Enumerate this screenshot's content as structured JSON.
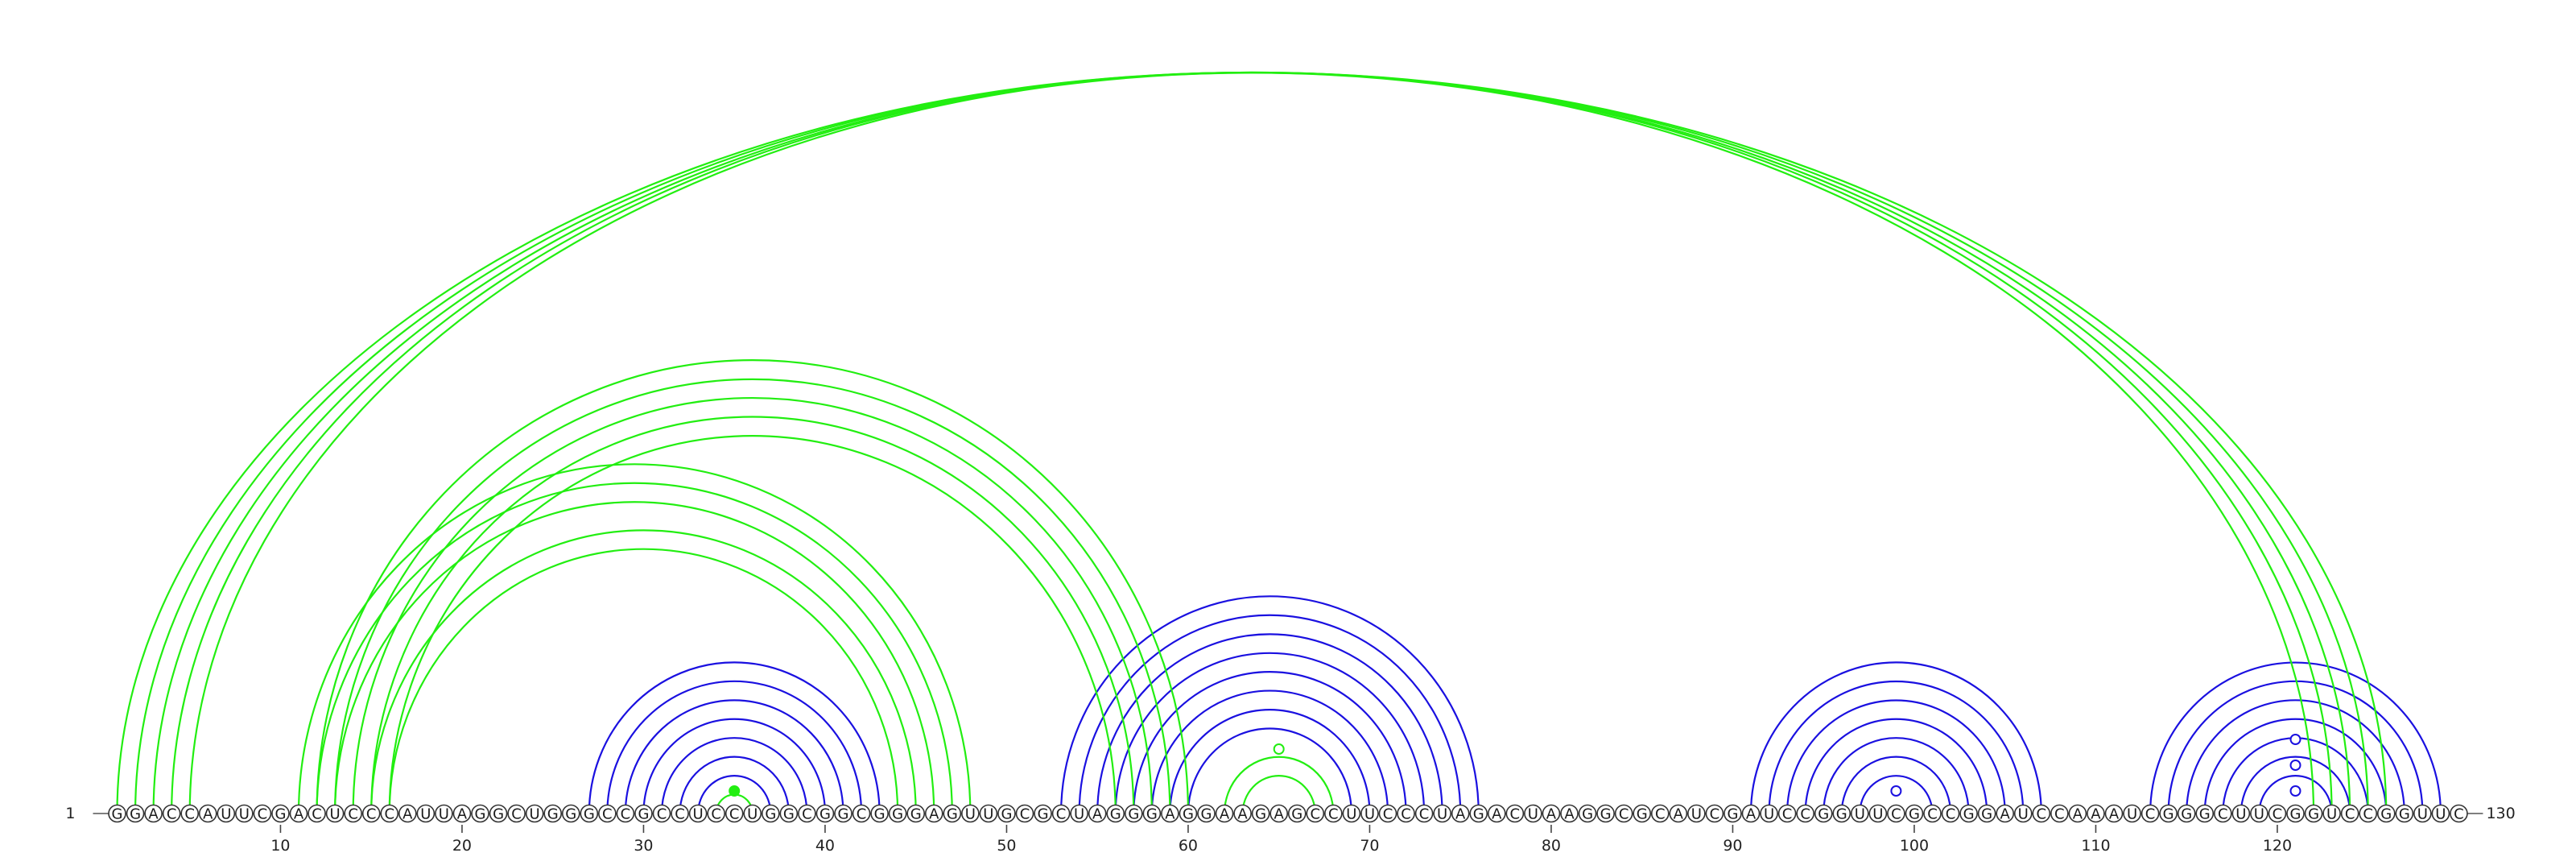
{
  "sequence": "GGACCAUUCGACUCCCAUUAGGCUGGGCCGCCUCCUGGCGGCGGGAGUUGCGCUAGGGAGGAAGAGCCUUCCCUAGACUAAGGCGCAUCGAUCCGGUUCGCCGGAUCCAAAUCGGGCUUCGGUCCGGUUC",
  "start_label": "1",
  "end_label": "130",
  "ticks": [
    10,
    20,
    30,
    40,
    50,
    60,
    70,
    80,
    90,
    100,
    110,
    120
  ],
  "colors": {
    "green": "#22ee11",
    "blue": "#1a10e0"
  },
  "pairs_green": [
    [
      1,
      126
    ],
    [
      2,
      125
    ],
    [
      3,
      124
    ],
    [
      4,
      123
    ],
    [
      5,
      122
    ],
    [
      12,
      60
    ],
    [
      13,
      59
    ],
    [
      14,
      58
    ],
    [
      15,
      57
    ],
    [
      16,
      56
    ],
    [
      11,
      48
    ],
    [
      12,
      47
    ],
    [
      13,
      46
    ],
    [
      15,
      45
    ],
    [
      16,
      44
    ],
    [
      34,
      36
    ],
    [
      62,
      68
    ],
    [
      63,
      67
    ]
  ],
  "pairs_blue": [
    [
      27,
      43
    ],
    [
      28,
      42
    ],
    [
      29,
      41
    ],
    [
      30,
      40
    ],
    [
      31,
      39
    ],
    [
      32,
      38
    ],
    [
      33,
      37
    ],
    [
      53,
      76
    ],
    [
      54,
      75
    ],
    [
      55,
      74
    ],
    [
      56,
      73
    ],
    [
      57,
      72
    ],
    [
      58,
      71
    ],
    [
      59,
      70
    ],
    [
      60,
      69
    ],
    [
      91,
      107
    ],
    [
      92,
      106
    ],
    [
      93,
      105
    ],
    [
      94,
      104
    ],
    [
      95,
      103
    ],
    [
      96,
      102
    ],
    [
      97,
      101
    ],
    [
      113,
      129
    ],
    [
      114,
      128
    ],
    [
      115,
      127
    ],
    [
      116,
      126
    ],
    [
      117,
      125
    ],
    [
      118,
      124
    ],
    [
      119,
      123
    ]
  ],
  "unpaired_markers": [
    {
      "pos": 35,
      "color": "green",
      "filled": true
    },
    {
      "pos": 65,
      "color": "green",
      "filled": false
    },
    {
      "pos": 99,
      "color": "blue",
      "filled": false
    },
    {
      "pos": 121,
      "color": "blue",
      "filled": false
    },
    {
      "pos": 121,
      "color": "blue",
      "filled": false
    },
    {
      "pos": 121,
      "color": "blue",
      "filled": false
    }
  ]
}
